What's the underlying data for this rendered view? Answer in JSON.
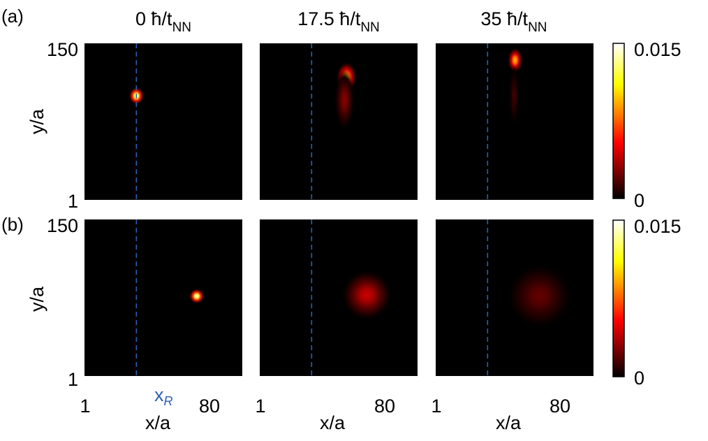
{
  "panel_labels": [
    "(a)",
    "(b)"
  ],
  "col_titles": [
    {
      "value": "0",
      "hbar": "ħ/t",
      "sub": "NN"
    },
    {
      "value": "17.5",
      "hbar": "ħ/t",
      "sub": "NN"
    },
    {
      "value": "35",
      "hbar": "ħ/t",
      "sub": "NN"
    }
  ],
  "xr_label": "x",
  "xr_sub": "R",
  "colorbar": {
    "max_label": "0.015",
    "min_label": "0",
    "colormap": "hot"
  },
  "chart_data": {
    "type": "heatmap",
    "xlabel": "x/a",
    "ylabel": "y/a",
    "xlim": [
      1,
      150
    ],
    "ylim": [
      1,
      150
    ],
    "x_ticks": [
      "1",
      "80"
    ],
    "y_ticks": [
      "1",
      "150"
    ],
    "x_ref": 50,
    "x_ref_color": "#2f5fb0",
    "clim": [
      0,
      0.015
    ],
    "rows": [
      {
        "label": "(a)",
        "panels": [
          {
            "time": 0,
            "blobs": [
              {
                "x": 50,
                "y": 100,
                "sx": 3,
                "sy": 3.5,
                "peak": 0.015
              }
            ]
          },
          {
            "time": 17.5,
            "blobs": [
              {
                "x": 83,
                "y": 118,
                "sx": 4,
                "sy": 6,
                "peak": 0.01
              },
              {
                "x": 81,
                "y": 96,
                "sx": 4,
                "sy": 12,
                "peak": 0.003
              }
            ]
          },
          {
            "time": 35,
            "blobs": [
              {
                "x": 76,
                "y": 134,
                "sx": 3,
                "sy": 5,
                "peak": 0.01
              },
              {
                "x": 75,
                "y": 100,
                "sx": 2,
                "sy": 12,
                "peak": 0.0015
              }
            ]
          }
        ]
      },
      {
        "label": "(b)",
        "panels": [
          {
            "time": 0,
            "blobs": [
              {
                "x": 107,
                "y": 77,
                "sx": 3,
                "sy": 3,
                "peak": 0.015
              }
            ]
          },
          {
            "time": 17.5,
            "blobs": [
              {
                "x": 102,
                "y": 78,
                "sx": 10,
                "sy": 10,
                "peak": 0.0045
              }
            ]
          },
          {
            "time": 35,
            "blobs": [
              {
                "x": 99,
                "y": 77,
                "sx": 13,
                "sy": 13,
                "peak": 0.0022
              }
            ]
          }
        ]
      }
    ]
  }
}
